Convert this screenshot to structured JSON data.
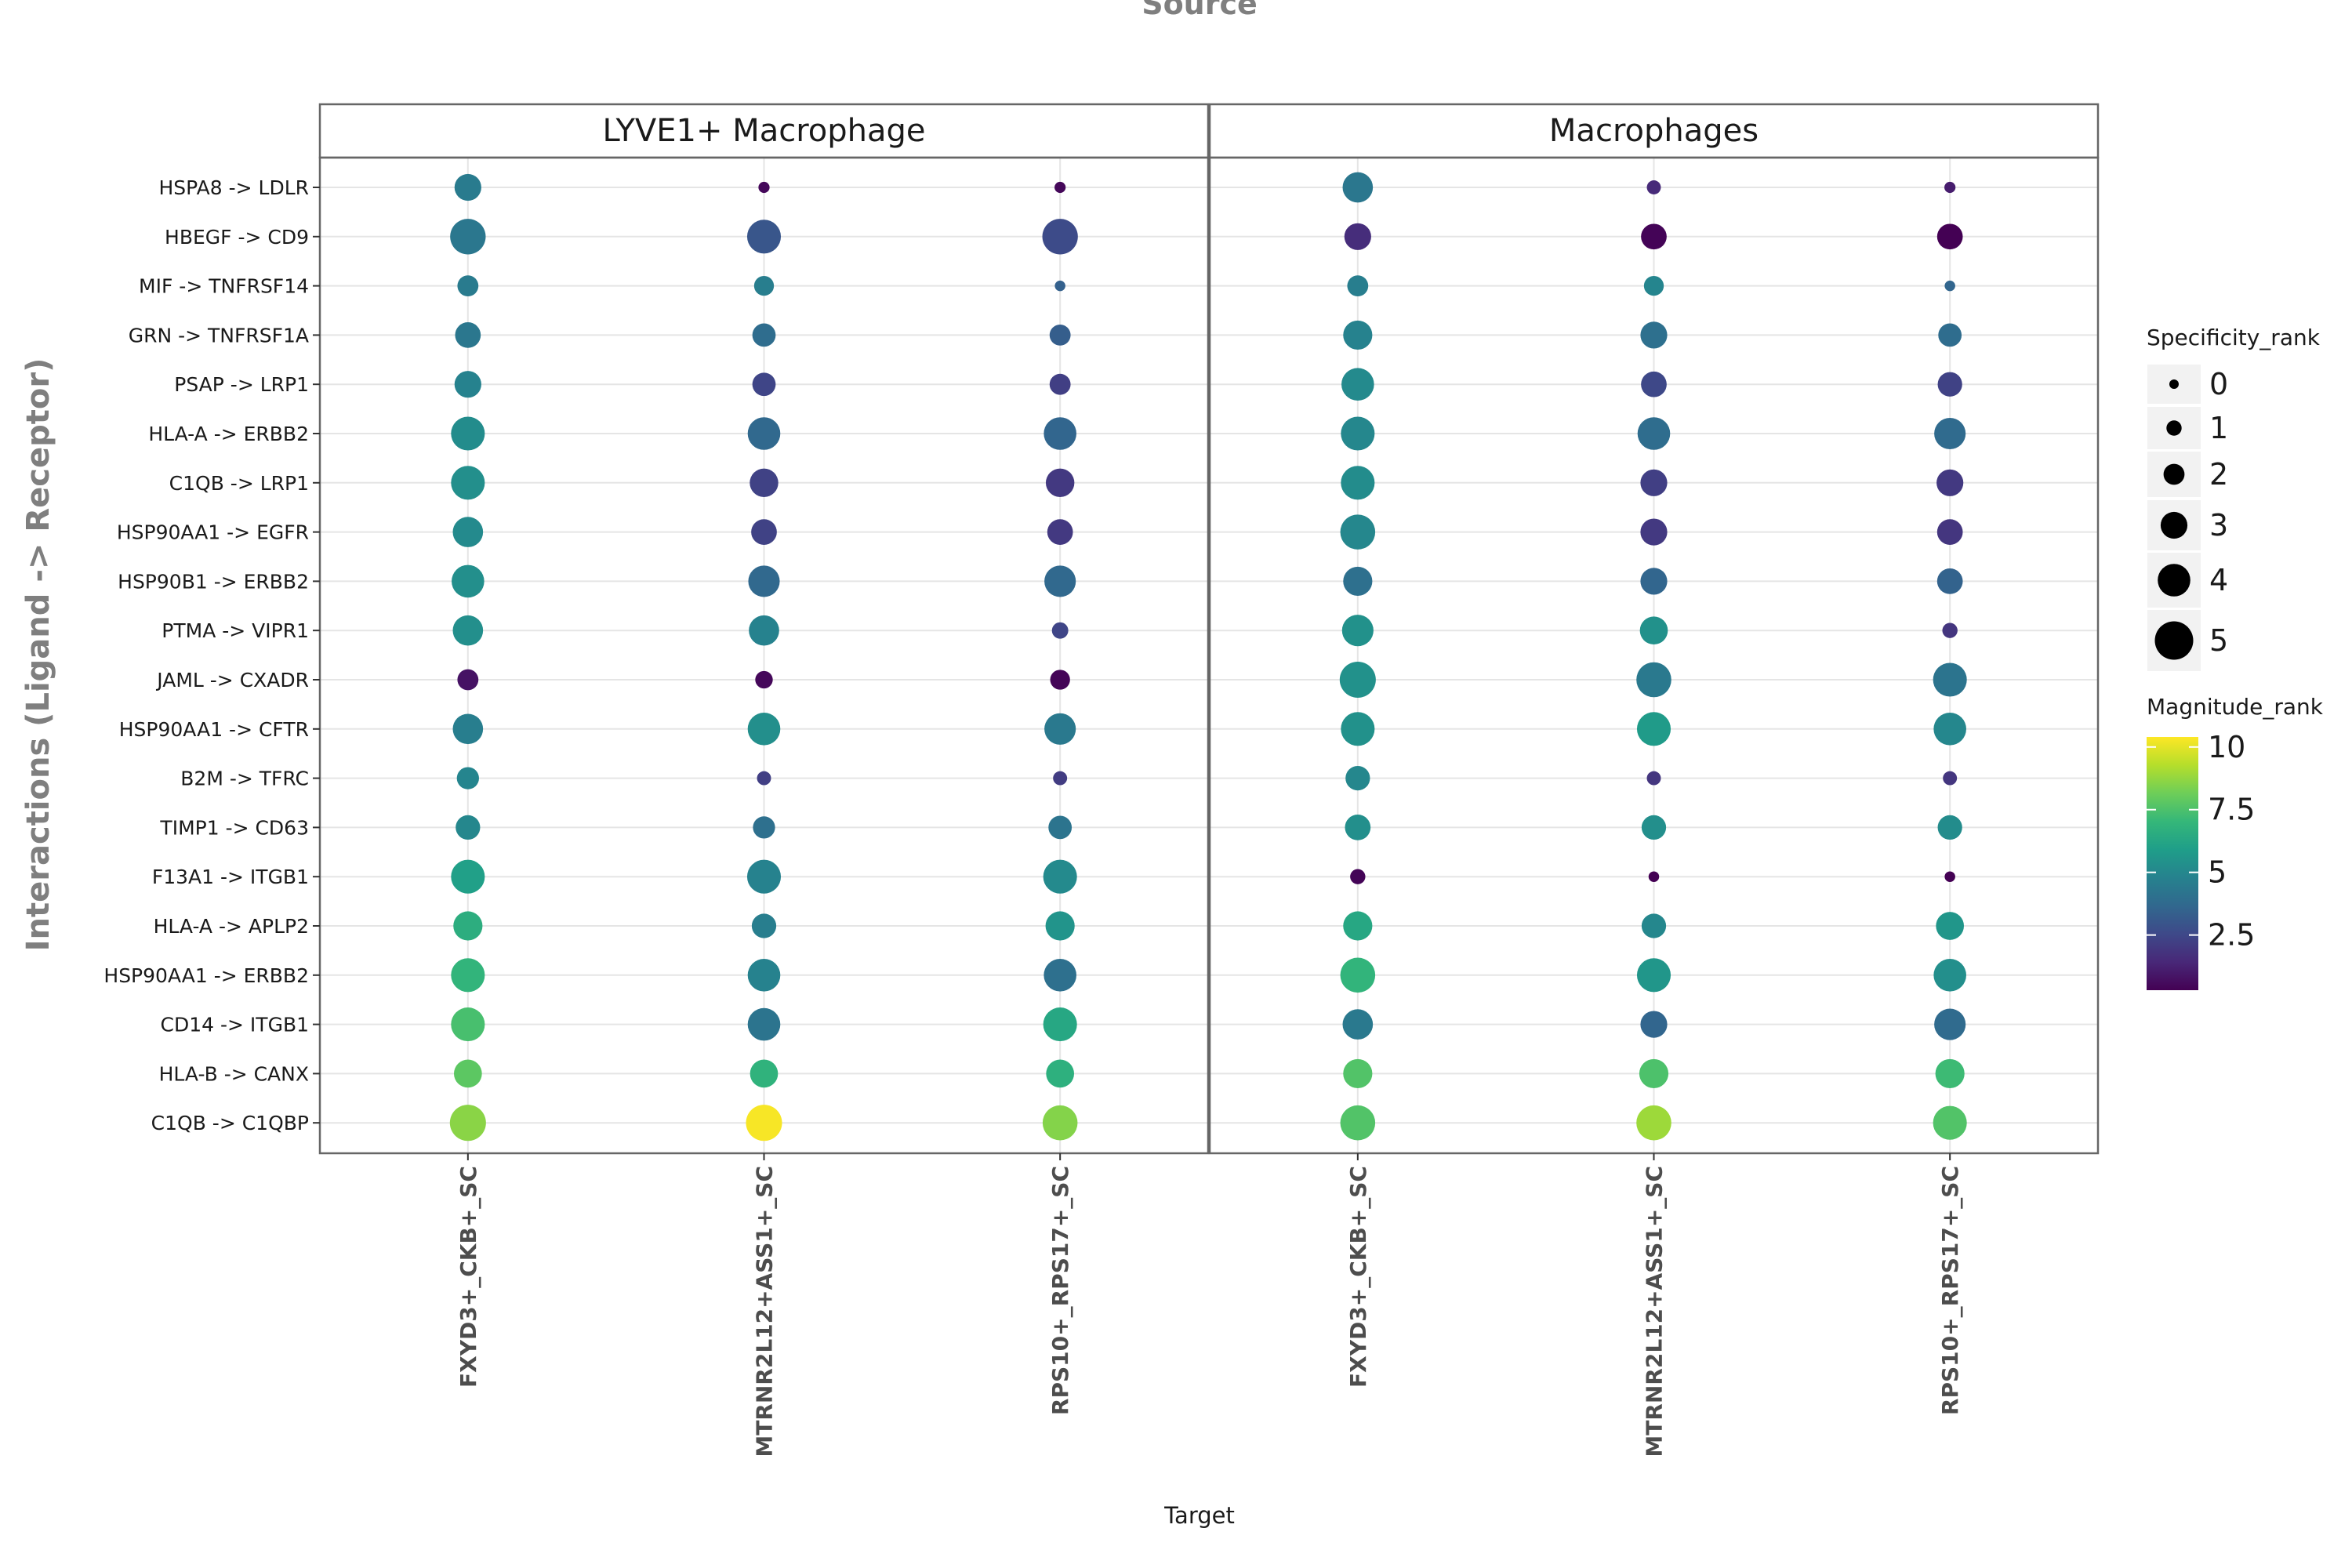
{
  "chart_data": {
    "type": "scatter",
    "subtype": "dot-plot",
    "title": "Source",
    "xlabel": "Target",
    "ylabel": "Interactions (Ligand -> Receptor)",
    "facets": [
      "LYVE1+ Macrophage",
      "Macrophages"
    ],
    "x_categories": [
      "FXYD3+_CKB+_SC",
      "MTRNR2L12+ASS1+_SC",
      "RPS10+_RPS17+_SC"
    ],
    "y_categories": [
      "HSPA8 -> LDLR",
      "HBEGF -> CD9",
      "MIF -> TNFRSF14",
      "GRN -> TNFRSF1A",
      "PSAP -> LRP1",
      "HLA-A -> ERBB2",
      "C1QB -> LRP1",
      "HSP90AA1 -> EGFR",
      "HSP90B1 -> ERBB2",
      "PTMA -> VIPR1",
      "JAML -> CXADR",
      "HSP90AA1 -> CFTR",
      "B2M -> TFRC",
      "TIMP1 -> CD63",
      "F13A1 -> ITGB1",
      "HLA-A -> APLP2",
      "HSP90AA1 -> ERBB2",
      "CD14 -> ITGB1",
      "HLA-B -> CANX",
      "C1QB -> C1QBP"
    ],
    "series": [
      {
        "facet": "LYVE1+ Macrophage",
        "magnitude_rank": [
          [
            4.5,
            0.5,
            0.5
          ],
          [
            4.3,
            3.0,
            2.6
          ],
          [
            4.5,
            4.6,
            3.4
          ],
          [
            4.3,
            3.9,
            3.3
          ],
          [
            4.8,
            2.4,
            2.2
          ],
          [
            5.2,
            3.7,
            3.6
          ],
          [
            5.3,
            2.3,
            2.0
          ],
          [
            5.1,
            2.3,
            2.0
          ],
          [
            5.3,
            3.7,
            3.7
          ],
          [
            5.3,
            4.8,
            2.4
          ],
          [
            0.8,
            0.5,
            0.4
          ],
          [
            4.6,
            5.3,
            4.4
          ],
          [
            4.9,
            2.2,
            2.1
          ],
          [
            5.0,
            4.0,
            4.2
          ],
          [
            6.0,
            4.8,
            5.1
          ],
          [
            6.6,
            4.6,
            5.5
          ],
          [
            6.9,
            4.8,
            4.0
          ],
          [
            7.4,
            4.2,
            6.3
          ],
          [
            7.8,
            6.8,
            6.7
          ],
          [
            8.6,
            10.3,
            8.5
          ]
        ],
        "specificity_rank": [
          [
            3.0,
            0.3,
            0.3
          ],
          [
            4.5,
            4.2,
            4.5
          ],
          [
            2.0,
            1.8,
            0.2
          ],
          [
            2.8,
            2.4,
            2.0
          ],
          [
            3.0,
            2.4,
            2.0
          ],
          [
            4.2,
            4.0,
            4.0
          ],
          [
            4.2,
            3.3,
            3.3
          ],
          [
            3.6,
            2.8,
            2.8
          ],
          [
            4.0,
            3.8,
            3.8
          ],
          [
            3.6,
            3.6,
            1.2
          ],
          [
            2.0,
            1.4,
            1.8
          ],
          [
            3.6,
            4.0,
            3.8
          ],
          [
            2.2,
            0.8,
            0.8
          ],
          [
            2.6,
            2.2,
            2.4
          ],
          [
            4.2,
            4.2,
            4.2
          ],
          [
            3.4,
            2.6,
            3.4
          ],
          [
            4.2,
            4.0,
            4.0
          ],
          [
            4.2,
            4.0,
            4.2
          ],
          [
            3.2,
            3.2,
            3.2
          ],
          [
            4.6,
            4.6,
            4.4
          ]
        ]
      },
      {
        "facet": "Macrophages",
        "magnitude_rank": [
          [
            4.3,
            1.5,
            1.1
          ],
          [
            1.6,
            0.4,
            0.2
          ],
          [
            4.6,
            4.9,
            3.6
          ],
          [
            4.8,
            4.0,
            3.9
          ],
          [
            5.1,
            2.5,
            2.3
          ],
          [
            5.0,
            3.9,
            3.8
          ],
          [
            5.2,
            2.2,
            2.0
          ],
          [
            5.0,
            2.0,
            1.9
          ],
          [
            4.0,
            3.6,
            3.5
          ],
          [
            5.4,
            5.4,
            1.9
          ],
          [
            5.4,
            4.4,
            4.2
          ],
          [
            5.4,
            5.8,
            5.0
          ],
          [
            5.0,
            1.9,
            1.9
          ],
          [
            5.3,
            5.3,
            5.2
          ],
          [
            0.4,
            0.3,
            0.3
          ],
          [
            6.3,
            5.0,
            5.6
          ],
          [
            6.9,
            5.6,
            5.3
          ],
          [
            4.4,
            3.6,
            3.8
          ],
          [
            7.6,
            7.5,
            7.2
          ],
          [
            7.6,
            8.9,
            7.6
          ]
        ],
        "specificity_rank": [
          [
            3.6,
            0.8,
            0.3
          ],
          [
            3.0,
            2.8,
            2.8
          ],
          [
            2.0,
            1.8,
            0.2
          ],
          [
            3.4,
            3.0,
            2.4
          ],
          [
            4.0,
            2.8,
            2.6
          ],
          [
            4.2,
            4.0,
            3.8
          ],
          [
            4.2,
            3.0,
            3.0
          ],
          [
            4.4,
            3.0,
            2.8
          ],
          [
            3.4,
            3.0,
            2.8
          ],
          [
            3.8,
            3.2,
            1.0
          ],
          [
            4.6,
            4.4,
            4.2
          ],
          [
            4.2,
            4.2,
            4.0
          ],
          [
            2.6,
            0.8,
            0.8
          ],
          [
            2.8,
            2.6,
            2.6
          ],
          [
            1.0,
            0.2,
            0.2
          ],
          [
            3.4,
            2.6,
            3.2
          ],
          [
            4.4,
            4.2,
            4.0
          ],
          [
            3.6,
            3.0,
            3.8
          ],
          [
            3.4,
            3.4,
            3.4
          ],
          [
            4.4,
            4.4,
            4.2
          ]
        ]
      }
    ],
    "size_legend": {
      "title": "Specificity_rank",
      "values": [
        0,
        1,
        2,
        3,
        4,
        5
      ]
    },
    "color_legend": {
      "title": "Magnitude_rank",
      "ticks": [
        2.5,
        5,
        7.5,
        10
      ],
      "tick_labels": [
        "2.5",
        "5",
        "7.5",
        "10"
      ],
      "range": [
        0.3,
        10.4
      ],
      "colormap": "viridis"
    },
    "colors": {
      "viridis": [
        "#440154",
        "#482878",
        "#3e4989",
        "#31688e",
        "#26828e",
        "#1f9e89",
        "#35b779",
        "#6ece58",
        "#b5de2b",
        "#fde725"
      ],
      "strip_fill": "#ffffff",
      "panel_border": "#666666",
      "gridline": "#e5e5e5",
      "axis_text": "#4d4d4d",
      "title_text": "#7f7f7f"
    },
    "grid": true,
    "legend_position": "right"
  }
}
